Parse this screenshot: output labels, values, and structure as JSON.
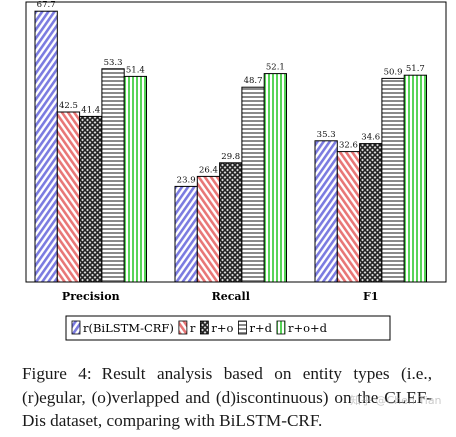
{
  "chart_data": {
    "type": "bar",
    "categories": [
      "Precision",
      "Recall",
      "F1"
    ],
    "ylim": [
      0,
      70
    ],
    "grid": false,
    "legend_position": "bottom",
    "series": [
      {
        "name": "r(BiLSTM-CRF)",
        "values": [
          67.7,
          23.9,
          35.3
        ],
        "color": "#8d8ce8",
        "pattern": "diagonal-lines"
      },
      {
        "name": "r",
        "values": [
          42.5,
          26.4,
          32.6
        ],
        "color": "#f2908f",
        "pattern": "backslash-lines"
      },
      {
        "name": "r+o",
        "values": [
          41.4,
          29.8,
          34.6
        ],
        "color": "#505a50",
        "pattern": "crosshatch"
      },
      {
        "name": "r+d",
        "values": [
          53.3,
          48.7,
          50.9
        ],
        "color": "#8a8a8a",
        "pattern": "horizontal-lines"
      },
      {
        "name": "r+o+d",
        "values": [
          51.4,
          52.1,
          51.7
        ],
        "color": "#7ee07e",
        "pattern": "vertical-lines"
      }
    ],
    "labels": [
      [
        "67.7",
        "23.9",
        "35.3"
      ],
      [
        "42.5",
        "26.4",
        "32.6"
      ],
      [
        "41.4",
        "29.8",
        "34.6"
      ],
      [
        "53.3",
        "48.7",
        "50.9"
      ],
      [
        "51.4",
        "52.1",
        "51.7"
      ]
    ]
  },
  "caption": {
    "label": "Figure 4:",
    "text": "Result analysis based on entity types (i.e., (r)egular, (o)verlapped and (d)iscontinuous) on the CLEF-Dis dataset, comparing with BiLSTM-CRF."
  },
  "watermark": "知乎 @Chen Tian"
}
